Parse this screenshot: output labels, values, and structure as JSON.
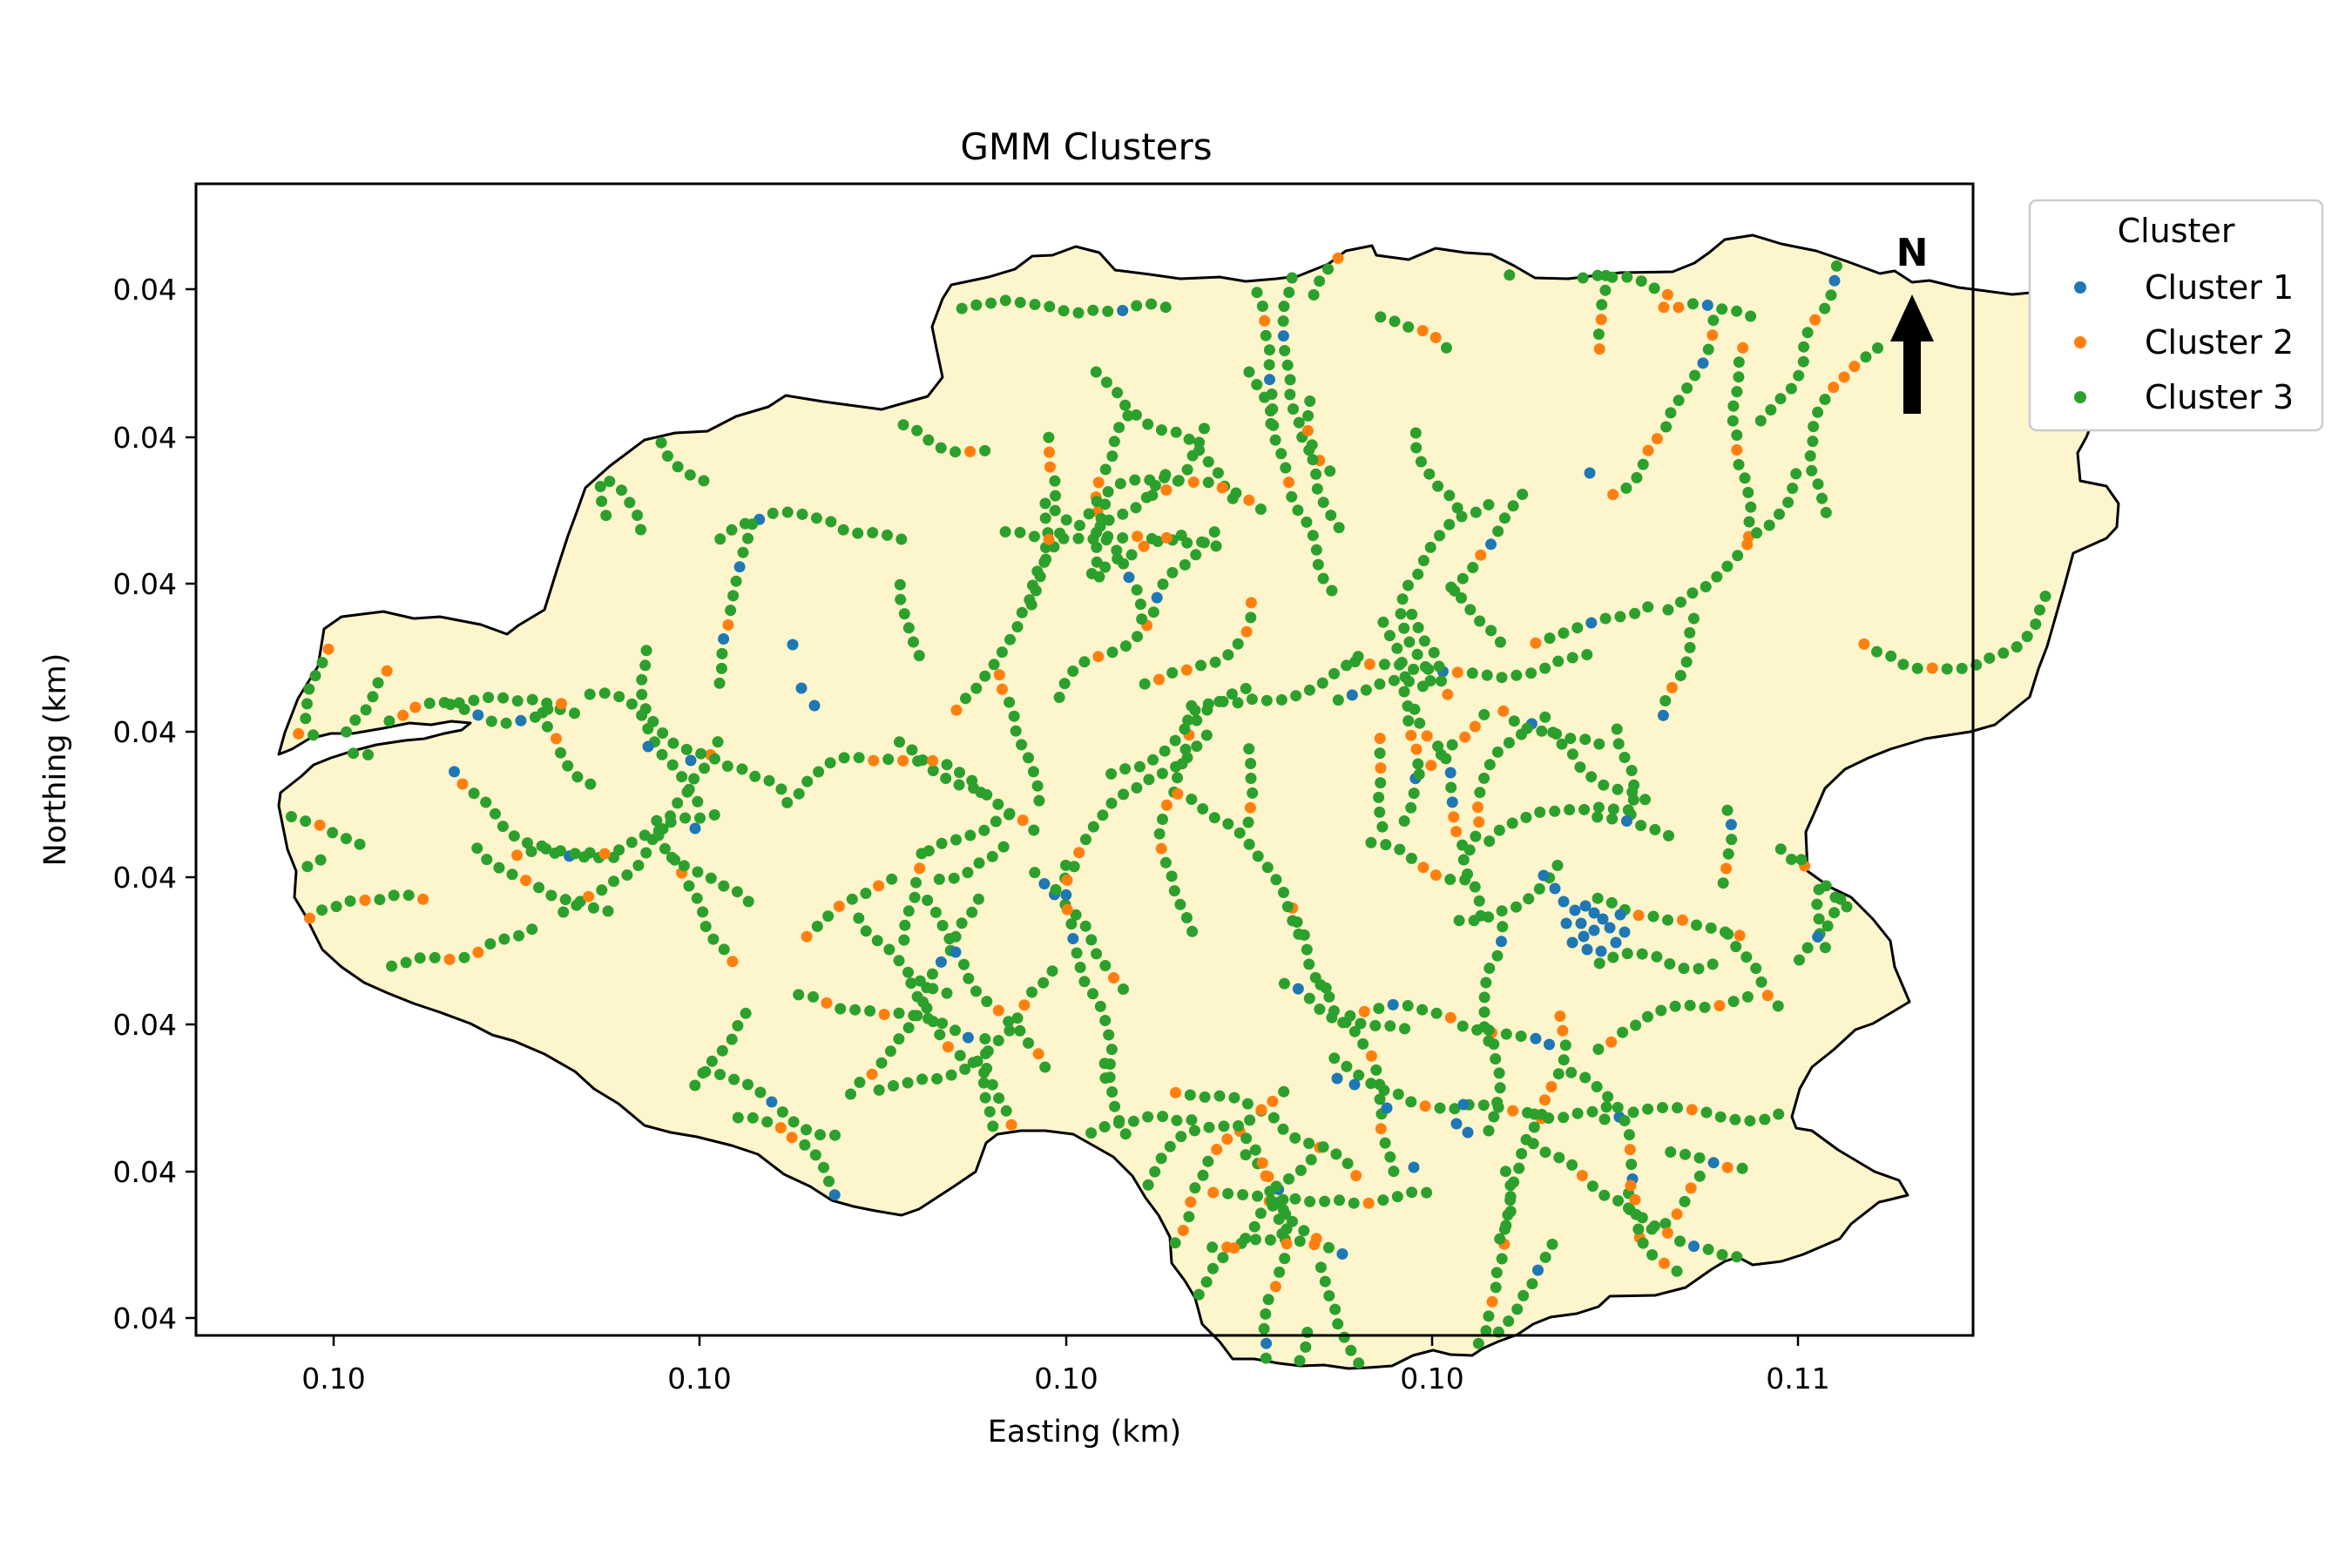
{
  "chart_data": {
    "type": "scatter",
    "title": "GMM Clusters",
    "xlabel": "Easting (km)",
    "ylabel": "Northing (km)",
    "x_ticks": [
      "0.10",
      "0.10",
      "0.10",
      "0.10",
      "0.11"
    ],
    "y_ticks": [
      "0.04",
      "0.04",
      "0.04",
      "0.04",
      "0.04",
      "0.04",
      "0.04",
      "0.04"
    ],
    "grid": false,
    "legend": {
      "title": "Cluster",
      "placement": "outside-top-right",
      "entries": [
        "Cluster 1",
        "Cluster 2",
        "Cluster 3"
      ]
    },
    "north_arrow": "N",
    "series": [
      {
        "name": "Cluster 1",
        "color": "#1f77b4"
      },
      {
        "name": "Cluster 2",
        "color": "#ff7f0e"
      },
      {
        "name": "Cluster 3",
        "color": "#2ca02c"
      }
    ],
    "basin_fill": "#fdf5cc",
    "basin_edge": "#000000"
  }
}
